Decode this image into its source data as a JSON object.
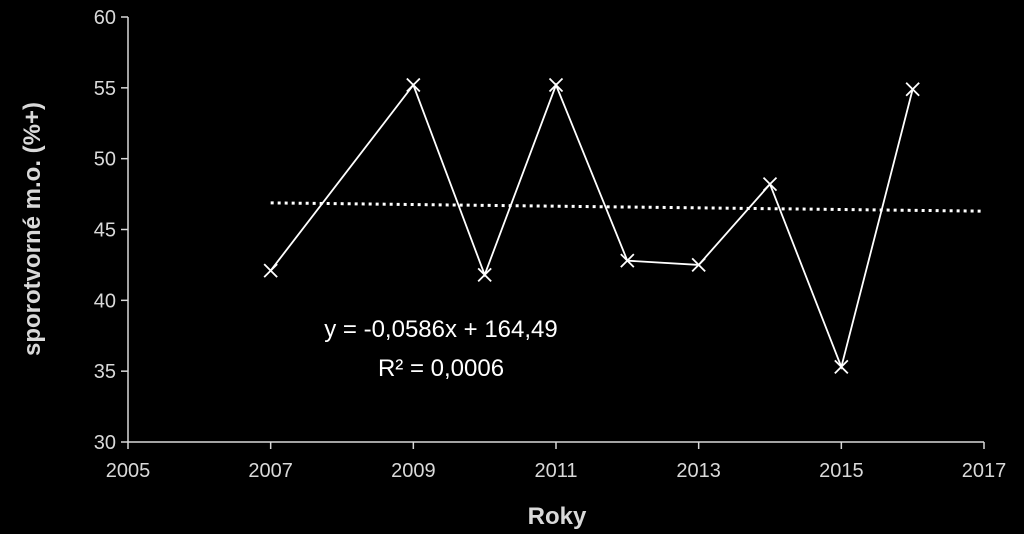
{
  "chart_data": {
    "type": "scatter",
    "title": "",
    "xlabel": "Roky",
    "ylabel": "sporotvorné  m.o.  (%+)",
    "xlim": [
      2005,
      2017
    ],
    "ylim": [
      30,
      60
    ],
    "x_ticks": [
      2005,
      2007,
      2009,
      2011,
      2013,
      2015,
      2017
    ],
    "y_ticks": [
      30,
      35,
      40,
      45,
      50,
      55,
      60
    ],
    "grid": false,
    "marker": "x",
    "line_color": "#ffffff",
    "series": [
      {
        "x": [
          2007,
          2009,
          2010,
          2011,
          2012,
          2013,
          2014,
          2015,
          2016
        ],
        "y": [
          42.1,
          55.2,
          41.8,
          55.2,
          42.8,
          42.5,
          48.2,
          35.3,
          54.9
        ]
      }
    ],
    "trendline": {
      "type": "linear",
      "slope": -0.0586,
      "intercept": 164.49,
      "from": 2007,
      "to": 2017,
      "style": "dotted",
      "equation": "y = -0,0586x + 164,49",
      "r_squared": "R² = 0,0006"
    }
  }
}
